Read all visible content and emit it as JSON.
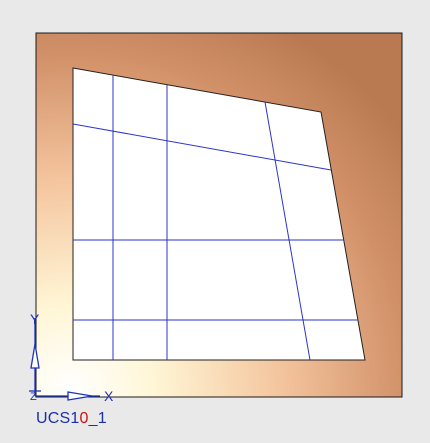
{
  "viewport": {
    "ucs": {
      "label_prefix": "UCS1",
      "label_marker": "0",
      "label_suffix": "_1",
      "axis_x_label": "X",
      "axis_y_label": "Y",
      "axis_z_label": "Z",
      "axis_color": "#1f33b8"
    },
    "colors": {
      "background": "#e9e9e9",
      "sheet_border": "#1a1a1a",
      "gradient_light": "#fffbe6",
      "gradient_mid": "#f1c39c",
      "gradient_dark": "#b97a52",
      "mesh_line": "#2b35c8",
      "mesh_fill": "#ffffff"
    }
  }
}
